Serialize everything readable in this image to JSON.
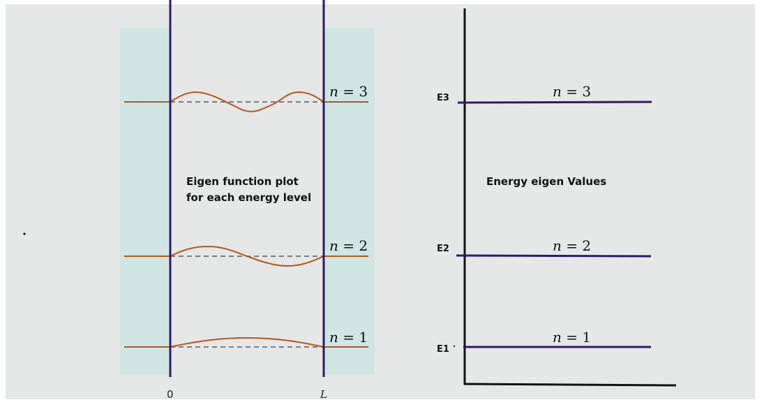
{
  "eigenfunction_panel": {
    "caption_line1": "Eigen function plot",
    "caption_line2": "for each energy level",
    "well_left_label": "0",
    "well_right_label": "L",
    "levels": [
      {
        "n": 3,
        "n_var": "n",
        "n_eq": " = ",
        "n_value": "3"
      },
      {
        "n": 2,
        "n_var": "n",
        "n_eq": " = ",
        "n_value": "2"
      },
      {
        "n": 1,
        "n_var": "n",
        "n_eq": " = ",
        "n_value": "1"
      }
    ]
  },
  "energy_panel": {
    "caption": "Energy eigen Values",
    "levels": [
      {
        "name": "E3",
        "n_var": "n",
        "n_eq": " = ",
        "n_value": "3"
      },
      {
        "name": "E2",
        "n_var": "n",
        "n_eq": " = ",
        "n_value": "2"
      },
      {
        "name": "E1",
        "n_var": "n",
        "n_eq": " = ",
        "n_value": "1"
      }
    ]
  },
  "colors": {
    "background_panel": "#e6e8e7",
    "well_region": "#cfe6e5",
    "well_wall": "#2e1a6b",
    "wavefunction": "#b8561c",
    "baseline_dashed": "#555555",
    "energy_level": "#2e1a6b",
    "axis": "#111111"
  }
}
